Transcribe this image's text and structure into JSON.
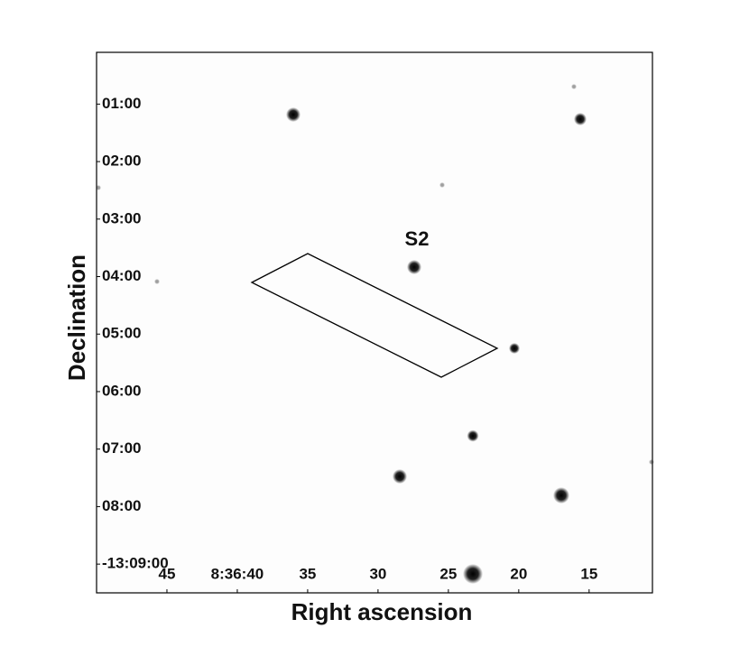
{
  "chart_data": {
    "type": "image",
    "x_label": "Right ascension",
    "y_label": "Declination",
    "annotation": "S2",
    "xlim": [
      50,
      10.5
    ],
    "xticks": [
      {
        "value": 45,
        "label": "45"
      },
      {
        "value": 40,
        "label": "8:36:40"
      },
      {
        "value": 35,
        "label": "35"
      },
      {
        "value": 30,
        "label": "30"
      },
      {
        "value": 25,
        "label": "25"
      },
      {
        "value": 20,
        "label": "20"
      },
      {
        "value": 15,
        "label": "15"
      }
    ],
    "ylim": [
      0.1,
      9.5
    ],
    "yticks": [
      {
        "value": 1,
        "label": "01:00"
      },
      {
        "value": 2,
        "label": "02:00"
      },
      {
        "value": 3,
        "label": "03:00"
      },
      {
        "value": 4,
        "label": "04:00"
      },
      {
        "value": 5,
        "label": "05:00"
      },
      {
        "value": 6,
        "label": "06:00"
      },
      {
        "value": 7,
        "label": "07:00"
      },
      {
        "value": 8,
        "label": "08:00"
      },
      {
        "value": 9,
        "label": "-13:09:00"
      }
    ]
  }
}
